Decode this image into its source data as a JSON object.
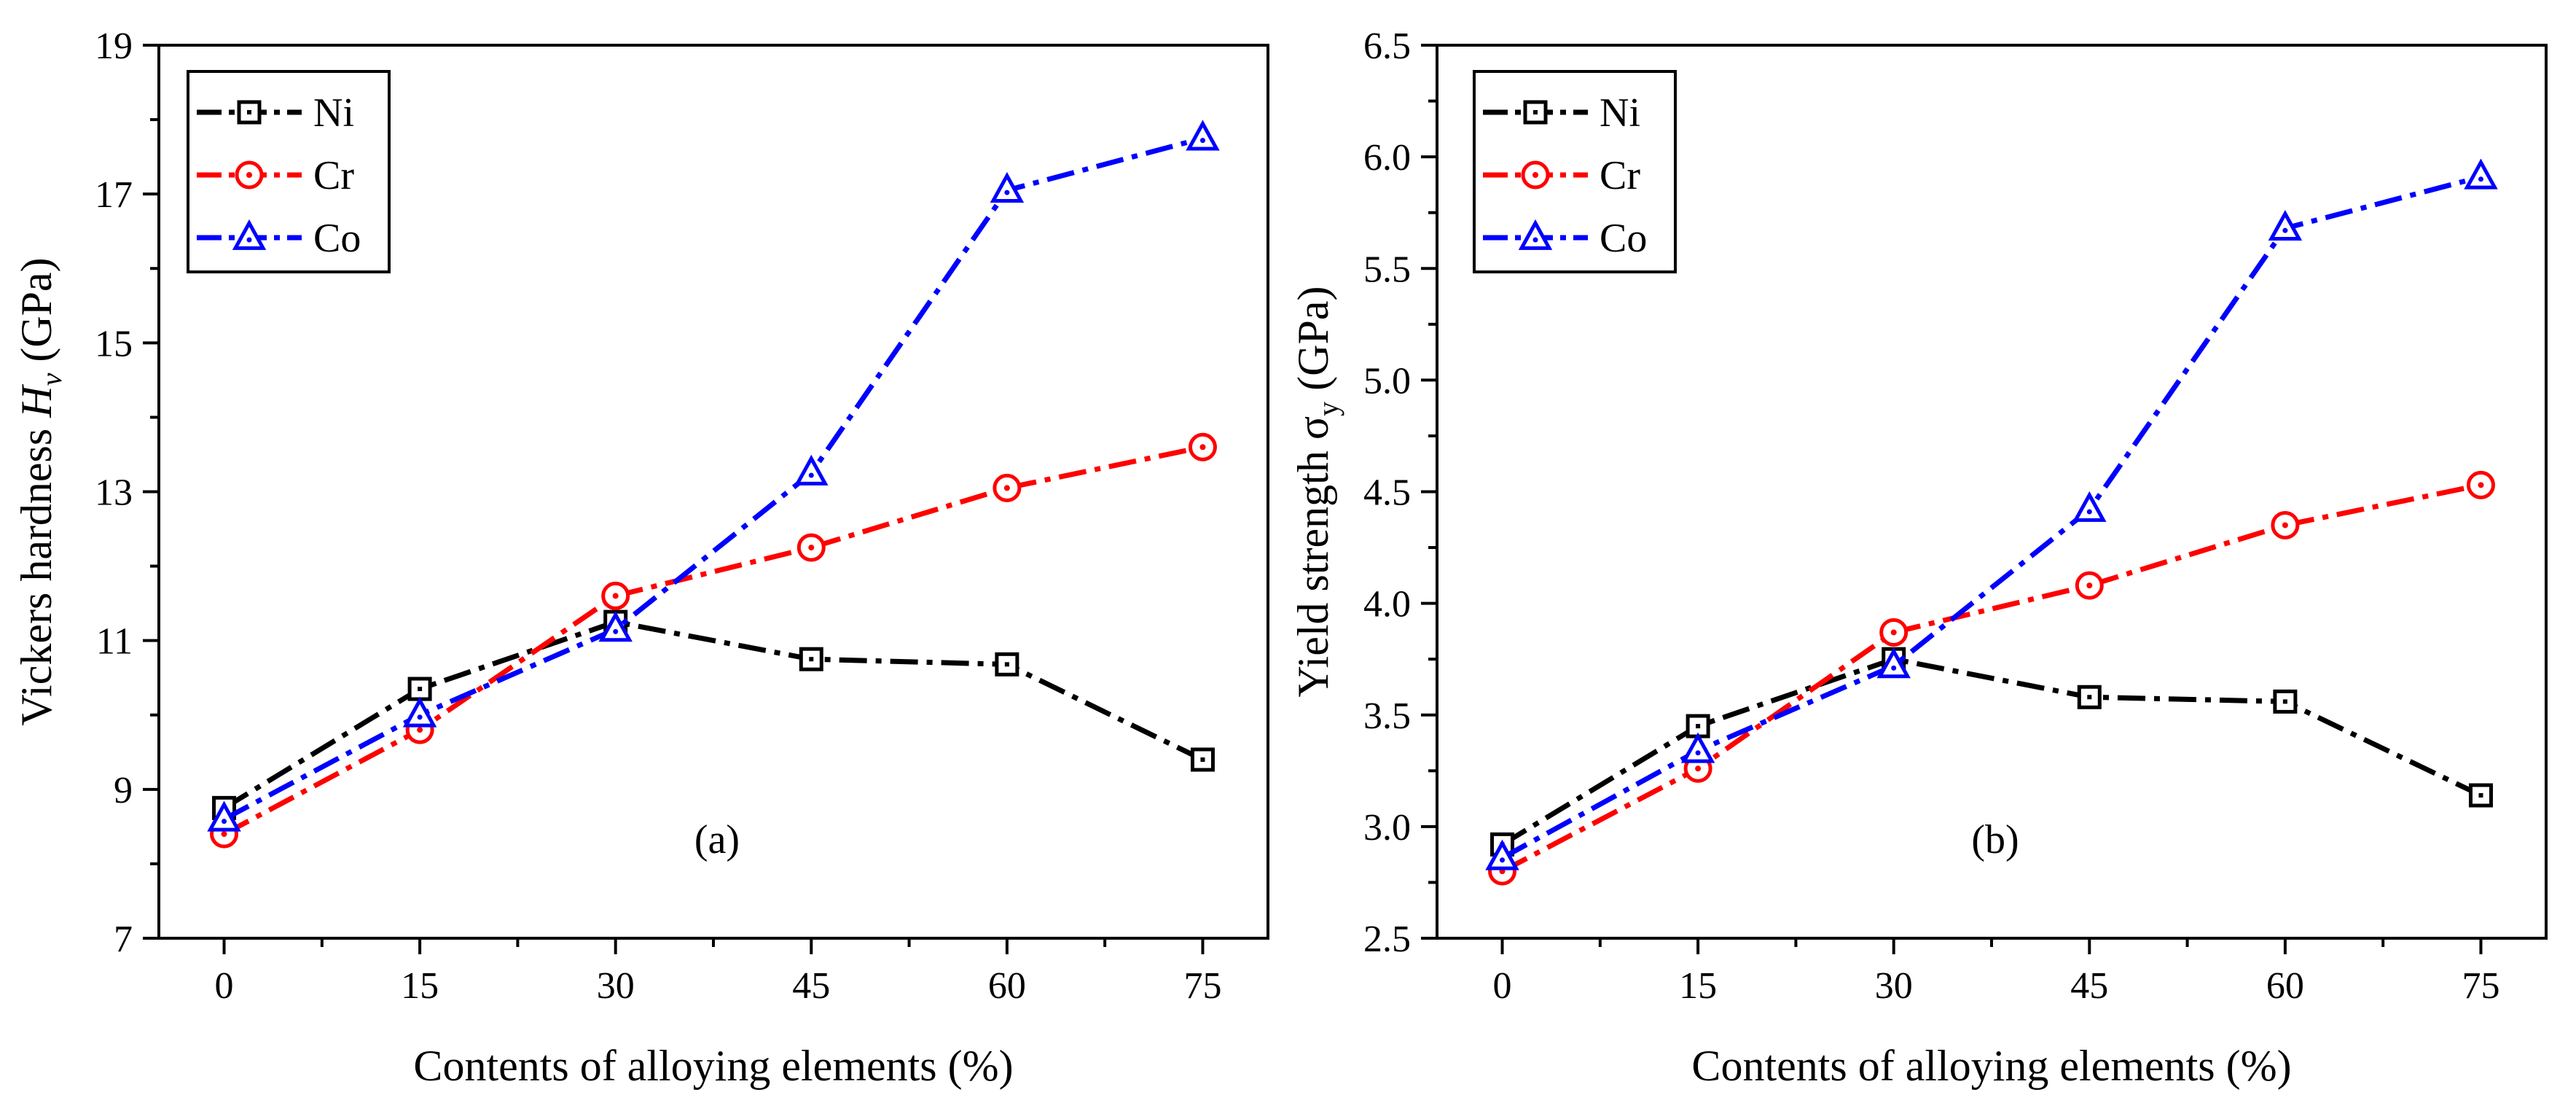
{
  "chart_data": [
    {
      "type": "line",
      "panel_label": "(a)",
      "xlabel": "Contents of alloying elements (%)",
      "ylabel_prefix": "Vickers hardness ",
      "ylabel_symbol": "H",
      "ylabel_subscript": "v",
      "ylabel_suffix": " (GPa)",
      "x": [
        0,
        15,
        30,
        45,
        60,
        75
      ],
      "xlim": [
        -5,
        80
      ],
      "ylim": [
        7,
        19
      ],
      "xticks": [
        "0",
        "15",
        "30",
        "45",
        "60",
        "75"
      ],
      "yticks": [
        "7",
        "9",
        "11",
        "13",
        "15",
        "17",
        "19"
      ],
      "grid": false,
      "legend_position": "top-left",
      "series": [
        {
          "name": "Ni",
          "color": "#000000",
          "marker": "square",
          "values": [
            8.75,
            10.35,
            11.25,
            10.75,
            10.68,
            9.4
          ]
        },
        {
          "name": "Cr",
          "color": "#ff0000",
          "marker": "circle",
          "values": [
            8.4,
            9.8,
            11.6,
            12.25,
            13.05,
            13.6
          ]
        },
        {
          "name": "Co",
          "color": "#0000ff",
          "marker": "triangle",
          "values": [
            8.6,
            10.0,
            11.15,
            13.25,
            17.05,
            17.75
          ]
        }
      ]
    },
    {
      "type": "line",
      "panel_label": "(b)",
      "xlabel": "Contents of alloying elements (%)",
      "ylabel_prefix": "Yield strength σ",
      "ylabel_symbol": "",
      "ylabel_subscript": "y",
      "ylabel_suffix": " (GPa)",
      "x": [
        0,
        15,
        30,
        45,
        60,
        75
      ],
      "xlim": [
        -5,
        80
      ],
      "ylim": [
        2.5,
        6.5
      ],
      "xticks": [
        "0",
        "15",
        "30",
        "45",
        "60",
        "75"
      ],
      "yticks": [
        "2.5",
        "3.0",
        "3.5",
        "4.0",
        "4.5",
        "5.0",
        "5.5",
        "6.0",
        "6.5"
      ],
      "grid": false,
      "legend_position": "top-left",
      "series": [
        {
          "name": "Ni",
          "color": "#000000",
          "marker": "square",
          "values": [
            2.92,
            3.45,
            3.75,
            3.58,
            3.56,
            3.14
          ]
        },
        {
          "name": "Cr",
          "color": "#ff0000",
          "marker": "circle",
          "values": [
            2.8,
            3.26,
            3.87,
            4.08,
            4.35,
            4.53
          ]
        },
        {
          "name": "Co",
          "color": "#0000ff",
          "marker": "triangle",
          "values": [
            2.86,
            3.34,
            3.72,
            4.42,
            5.68,
            5.91
          ]
        }
      ]
    }
  ]
}
